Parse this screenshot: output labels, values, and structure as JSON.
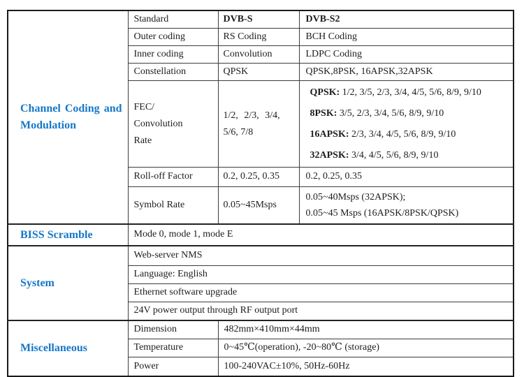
{
  "colors": {
    "category_blue": "#1677c8",
    "text": "#1d1d1d",
    "border": "#3c3c3c",
    "outer_border": "#1a1a1a",
    "background": "#ffffff"
  },
  "channel": {
    "category": "Channel Coding and Modulation",
    "rows": {
      "standard": {
        "label": "Standard",
        "s": "DVB-S",
        "s2": "DVB-S2"
      },
      "outer": {
        "label": "Outer coding",
        "s": "RS Coding",
        "s2": "BCH Coding"
      },
      "inner": {
        "label": "Inner coding",
        "s": "Convolution",
        "s2": "LDPC Coding"
      },
      "constellation": {
        "label": "Constellation",
        "s": "QPSK",
        "s2": "QPSK,8PSK, 16APSK,32APSK"
      },
      "fec": {
        "label_lines": [
          "FEC/",
          "Convolution",
          "Rate"
        ],
        "s_line1": "1/2, 2/3, 3/4,",
        "s_line2": "5/6, 7/8",
        "s2_lines": [
          {
            "prefix": "QPSK:",
            "rest": " 1/2, 3/5, 2/3, 3/4, 4/5, 5/6, 8/9, 9/10"
          },
          {
            "prefix": "8PSK:",
            "rest": " 3/5, 2/3, 3/4, 5/6, 8/9, 9/10"
          },
          {
            "prefix": "16APSK:",
            "rest": " 2/3, 3/4, 4/5, 5/6, 8/9, 9/10"
          },
          {
            "prefix": "32APSK:",
            "rest": " 3/4, 4/5, 5/6, 8/9, 9/10"
          }
        ]
      },
      "rolloff": {
        "label": "Roll-off Factor",
        "s": "0.2, 0.25, 0.35",
        "s2": "0.2, 0.25, 0.35"
      },
      "symbol": {
        "label": "Symbol Rate",
        "s": "0.05~45Msps",
        "s2_line1": "0.05~40Msps (32APSK);",
        "s2_line2": "0.05~45 Msps (16APSK/8PSK/QPSK)"
      }
    }
  },
  "biss": {
    "category": "BISS Scramble",
    "value": "Mode 0, mode 1, mode E"
  },
  "system": {
    "category": "System",
    "rows": [
      "Web-server NMS",
      "Language: English",
      "Ethernet software upgrade",
      "24V power output through RF output port"
    ]
  },
  "misc": {
    "category": "Miscellaneous",
    "rows": [
      {
        "label": "Dimension",
        "value": "482mm×410mm×44mm"
      },
      {
        "label": "Temperature",
        "value": "0~45℃(operation), -20~80℃ (storage)"
      },
      {
        "label": "Power",
        "value": "100-240VAC±10%, 50Hz-60Hz"
      }
    ]
  }
}
